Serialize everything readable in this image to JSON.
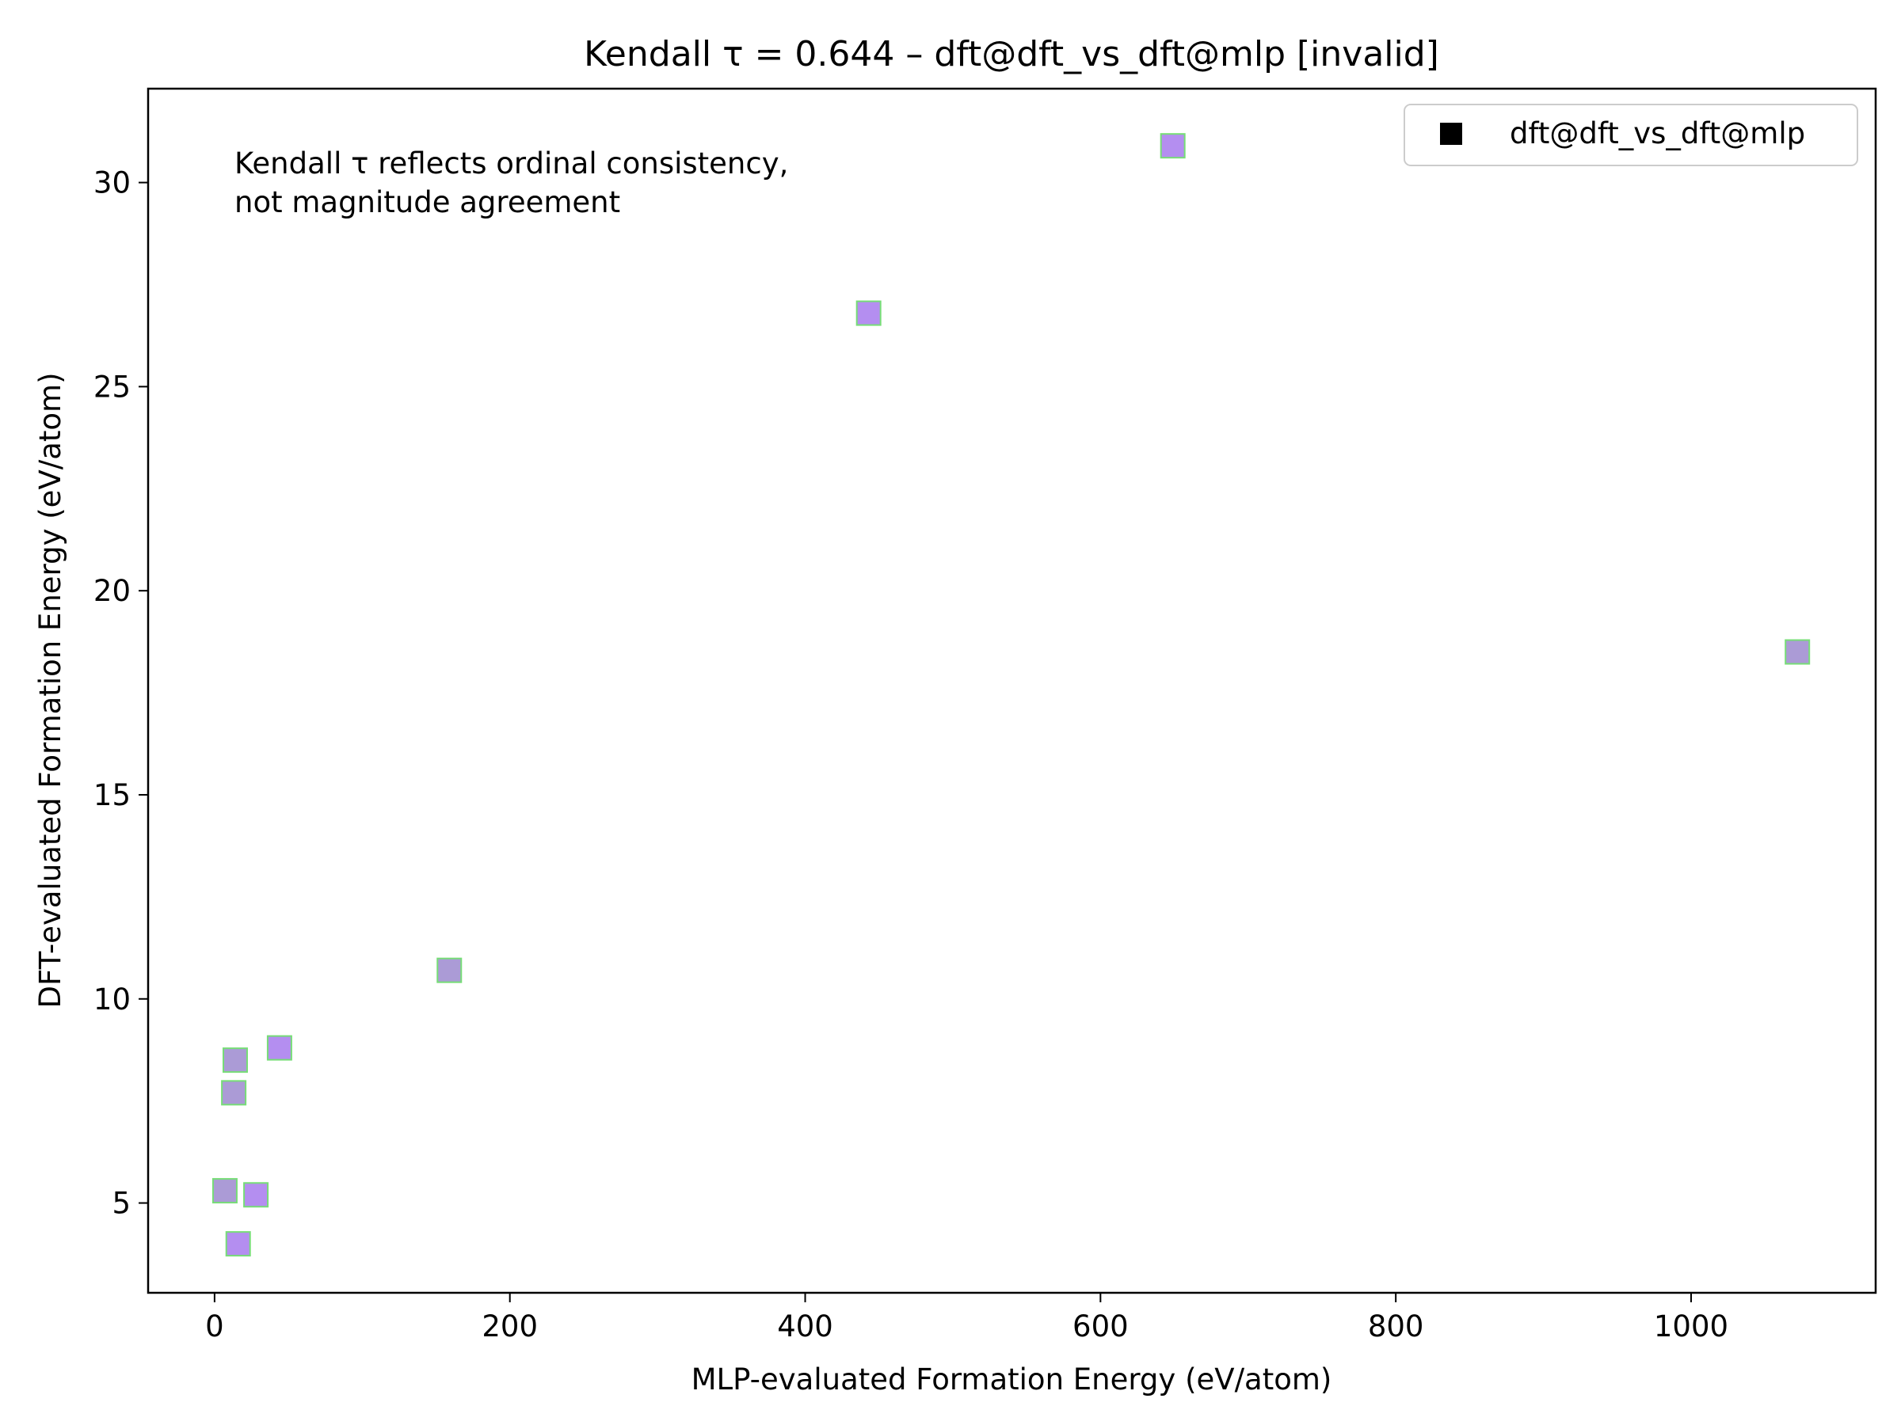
{
  "chart_data": {
    "type": "scatter",
    "title": "Kendall τ = 0.644 – dft@dft_vs_dft@mlp [invalid]",
    "xlabel": "MLP-evaluated Formation Energy (eV/atom)",
    "ylabel": "DFT-evaluated Formation Energy (eV/atom)",
    "xlim": [
      -45,
      1125
    ],
    "ylim": [
      2.8,
      32.3
    ],
    "x_ticks": [
      0,
      200,
      400,
      600,
      800,
      1000
    ],
    "y_ticks": [
      5,
      10,
      15,
      20,
      25,
      30
    ],
    "annotation": [
      "Kendall τ reflects ordinal consistency,",
      "not magnitude agreement"
    ],
    "grid": false,
    "legend_position": "top-right",
    "series": [
      {
        "name": "dft@dft_vs_dft@mlp",
        "marker": "square",
        "points": [
          {
            "x": 7,
            "y": 5.3,
            "fill": "#ab9bd6"
          },
          {
            "x": 13,
            "y": 7.7,
            "fill": "#ab9bd6"
          },
          {
            "x": 14,
            "y": 8.5,
            "fill": "#ab9bd6"
          },
          {
            "x": 16,
            "y": 4.0,
            "fill": "#b48ef0"
          },
          {
            "x": 28,
            "y": 5.2,
            "fill": "#b48ef0"
          },
          {
            "x": 44,
            "y": 8.8,
            "fill": "#b48ef0"
          },
          {
            "x": 159,
            "y": 10.7,
            "fill": "#ab9bd6"
          },
          {
            "x": 443,
            "y": 26.8,
            "fill": "#b48ef0"
          },
          {
            "x": 649,
            "y": 30.9,
            "fill": "#b48ef0"
          },
          {
            "x": 1072,
            "y": 18.5,
            "fill": "#ab9bd6"
          }
        ]
      }
    ],
    "colors": {
      "marker_edge": "#77dd77",
      "legend_marker": "#000000",
      "axes": "#000000"
    }
  }
}
